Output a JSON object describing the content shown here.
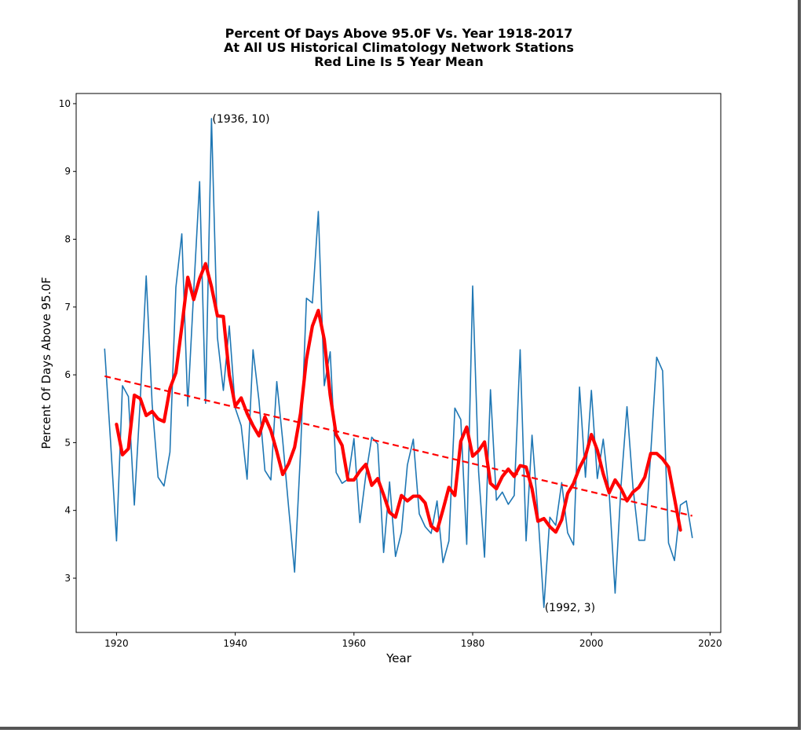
{
  "chart_data": {
    "type": "line",
    "title": [
      "Percent Of Days Above 95.0F Vs. Year 1918-2017",
      "At All US Historical Climatology Network Stations",
      "Red Line Is 5 Year Mean"
    ],
    "xlabel": "Year",
    "ylabel": "Percent Of Days Above 95.0F",
    "xlim": [
      1913.2,
      2021.8
    ],
    "ylim": [
      2.2,
      10.15
    ],
    "xticks": [
      1920,
      1940,
      1960,
      1980,
      2000,
      2020
    ],
    "yticks": [
      3,
      4,
      5,
      6,
      7,
      8,
      9,
      10
    ],
    "grid": false,
    "series": [
      {
        "color": "#1f77b4",
        "x": [
          1918,
          1919,
          1920,
          1921,
          1922,
          1923,
          1924,
          1925,
          1926,
          1927,
          1928,
          1929,
          1930,
          1931,
          1932,
          1933,
          1934,
          1935,
          1936,
          1937,
          1938,
          1939,
          1940,
          1941,
          1942,
          1943,
          1944,
          1945,
          1946,
          1947,
          1948,
          1949,
          1950,
          1951,
          1952,
          1953,
          1954,
          1955,
          1956,
          1957,
          1958,
          1959,
          1960,
          1961,
          1962,
          1963,
          1964,
          1965,
          1966,
          1967,
          1968,
          1969,
          1970,
          1971,
          1972,
          1973,
          1974,
          1975,
          1976,
          1977,
          1978,
          1979,
          1980,
          1981,
          1982,
          1983,
          1984,
          1985,
          1986,
          1987,
          1988,
          1989,
          1990,
          1991,
          1992,
          1993,
          1994,
          1995,
          1996,
          1997,
          1998,
          1999,
          2000,
          2001,
          2002,
          2003,
          2004,
          2005,
          2006,
          2007,
          2008,
          2009,
          2010,
          2011,
          2012,
          2013,
          2014,
          2015,
          2016,
          2017
        ],
        "y": [
          6.38,
          5.01,
          3.55,
          5.84,
          5.68,
          4.08,
          5.63,
          7.46,
          5.57,
          4.49,
          4.36,
          4.86,
          7.29,
          8.08,
          5.54,
          7.23,
          8.85,
          5.58,
          9.78,
          6.55,
          5.77,
          6.72,
          5.51,
          5.25,
          4.46,
          6.37,
          5.62,
          4.59,
          4.45,
          5.9,
          5.03,
          4.04,
          3.09,
          4.86,
          7.13,
          7.06,
          8.41,
          5.84,
          6.34,
          4.56,
          4.4,
          4.46,
          5.06,
          3.82,
          4.52,
          5.08,
          4.98,
          3.38,
          4.42,
          3.32,
          3.68,
          4.67,
          5.05,
          3.95,
          3.76,
          3.66,
          4.14,
          3.23,
          3.55,
          5.51,
          5.34,
          3.5,
          7.31,
          4.57,
          3.31,
          5.78,
          4.15,
          4.27,
          4.09,
          4.22,
          6.37,
          3.55,
          5.11,
          3.95,
          2.57,
          3.9,
          3.78,
          4.41,
          3.67,
          3.49,
          5.82,
          4.49,
          5.77,
          4.47,
          5.05,
          4.26,
          2.78,
          4.37,
          5.53,
          4.35,
          3.56,
          3.56,
          4.84,
          6.26,
          6.06,
          3.52,
          3.26,
          4.08,
          4.14,
          3.6
        ]
      },
      {
        "color": "#ff0000",
        "x": [
          1920,
          1921,
          1922,
          1923,
          1924,
          1925,
          1926,
          1927,
          1928,
          1929,
          1930,
          1931,
          1932,
          1933,
          1934,
          1935,
          1936,
          1937,
          1938,
          1939,
          1940,
          1941,
          1942,
          1943,
          1944,
          1945,
          1946,
          1947,
          1948,
          1949,
          1950,
          1951,
          1952,
          1953,
          1954,
          1955,
          1956,
          1957,
          1958,
          1959,
          1960,
          1961,
          1962,
          1963,
          1964,
          1965,
          1966,
          1967,
          1968,
          1969,
          1970,
          1971,
          1972,
          1973,
          1974,
          1975,
          1976,
          1977,
          1978,
          1979,
          1980,
          1981,
          1982,
          1983,
          1984,
          1985,
          1986,
          1987,
          1988,
          1989,
          1990,
          1991,
          1992,
          1993,
          1994,
          1995,
          1996,
          1997,
          1998,
          1999,
          2000,
          2001,
          2002,
          2003,
          2004,
          2005,
          2006,
          2007,
          2008,
          2009,
          2010,
          2011,
          2012,
          2013,
          2014,
          2015
        ],
        "y": [
          5.27,
          4.82,
          4.91,
          5.7,
          5.65,
          5.4,
          5.46,
          5.35,
          5.31,
          5.8,
          6.03,
          6.71,
          7.44,
          7.11,
          7.42,
          7.64,
          7.3,
          6.87,
          6.86,
          6.0,
          5.54,
          5.66,
          5.43,
          5.25,
          5.1,
          5.38,
          5.18,
          4.87,
          4.53,
          4.69,
          4.93,
          5.43,
          6.23,
          6.72,
          6.95,
          6.52,
          5.7,
          5.12,
          4.96,
          4.45,
          4.45,
          4.58,
          4.68,
          4.37,
          4.47,
          4.23,
          3.97,
          3.9,
          4.22,
          4.14,
          4.21,
          4.21,
          4.11,
          3.77,
          3.7,
          4.01,
          4.34,
          4.22,
          5.02,
          5.23,
          4.8,
          4.88,
          5.01,
          4.4,
          4.32,
          4.5,
          4.61,
          4.5,
          4.66,
          4.64,
          4.32,
          3.84,
          3.88,
          3.76,
          3.68,
          3.86,
          4.25,
          4.4,
          4.63,
          4.8,
          5.12,
          4.89,
          4.54,
          4.26,
          4.45,
          4.32,
          4.14,
          4.27,
          4.34,
          4.49,
          4.84,
          4.84,
          4.76,
          4.64,
          4.18,
          3.71
        ]
      },
      {
        "style": "dashed",
        "color": "#ff0000",
        "x": [
          1918,
          2017
        ],
        "y": [
          5.98,
          3.92
        ]
      }
    ],
    "annotations": [
      {
        "text": "(1936, 10)",
        "x": 1936,
        "y": 9.78
      },
      {
        "text": "(1992, 3)",
        "x": 1992,
        "y": 2.57
      }
    ]
  }
}
